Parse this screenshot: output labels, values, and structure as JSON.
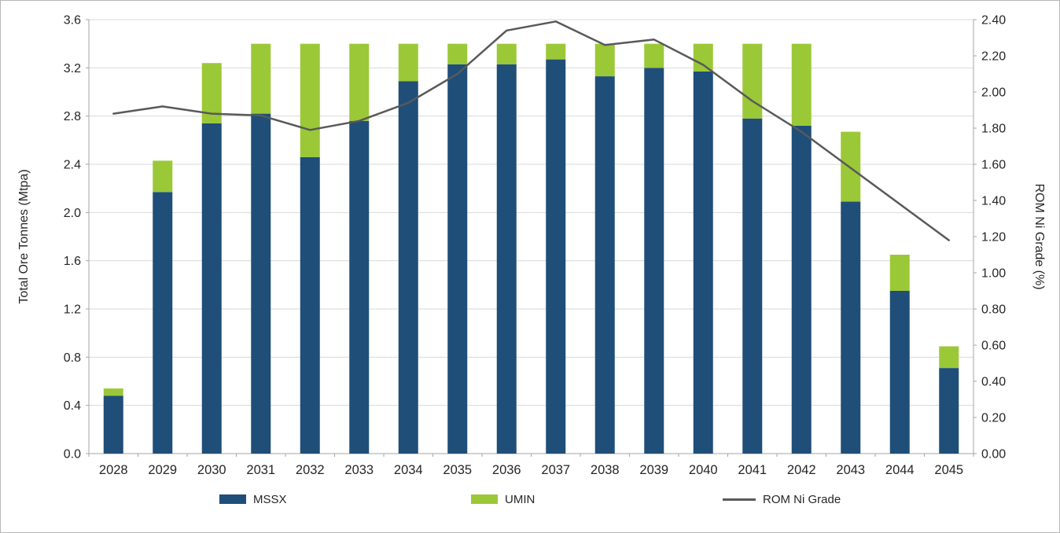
{
  "chart_data": {
    "type": "bar",
    "subtype": "stacked-bar-with-line",
    "title": "",
    "xlabel": "",
    "ylabel_left": "Total Ore Tonnes (Mtpa)",
    "ylabel_right": "ROM Ni Grade (%)",
    "y_left_axis": {
      "min": 0.0,
      "max": 3.6,
      "step": 0.4,
      "format_decimals": 1
    },
    "y_right_axis": {
      "min": 0.0,
      "max": 2.4,
      "step": 0.2,
      "format_decimals": 2
    },
    "grid": true,
    "legend_position": "bottom",
    "categories": [
      "2028",
      "2029",
      "2030",
      "2031",
      "2032",
      "2033",
      "2034",
      "2035",
      "2036",
      "2037",
      "2038",
      "2039",
      "2040",
      "2041",
      "2042",
      "2043",
      "2044",
      "2045"
    ],
    "series": [
      {
        "name": "MSSX",
        "type": "bar",
        "axis": "left",
        "color": "#1f4e79",
        "values": [
          0.48,
          2.17,
          2.74,
          2.82,
          2.46,
          2.76,
          3.09,
          3.23,
          3.23,
          3.27,
          3.13,
          3.2,
          3.17,
          2.78,
          2.72,
          2.09,
          1.35,
          0.71
        ]
      },
      {
        "name": "UMIN",
        "type": "bar",
        "axis": "left",
        "color": "#9bc837",
        "values": [
          0.06,
          0.26,
          0.5,
          0.58,
          0.94,
          0.64,
          0.31,
          0.17,
          0.17,
          0.13,
          0.27,
          0.2,
          0.23,
          0.62,
          0.68,
          0.58,
          0.3,
          0.18
        ]
      },
      {
        "name": "ROM Ni Grade",
        "type": "line",
        "axis": "right",
        "color": "#595959",
        "values": [
          1.88,
          1.92,
          1.88,
          1.87,
          1.79,
          1.84,
          1.94,
          2.1,
          2.34,
          2.39,
          2.26,
          2.29,
          2.15,
          1.95,
          1.78,
          1.58,
          1.38,
          1.18
        ]
      }
    ],
    "colors": {
      "gridline": "#d9d9d9",
      "axis_line": "#a6a6a6",
      "text": "#262626"
    }
  }
}
